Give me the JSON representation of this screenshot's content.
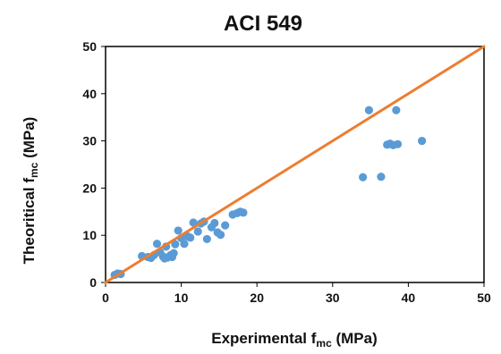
{
  "chart_data": {
    "type": "scatter",
    "title": "ACI 549",
    "xlabel": {
      "pre": "Experimental  f",
      "sub": "mc",
      "post": " (MPa)"
    },
    "ylabel": {
      "pre": "Theoritical  f",
      "sub": "mc",
      "post": " (MPa)"
    },
    "xlim": [
      0,
      50
    ],
    "ylim": [
      0,
      50
    ],
    "xticks": [
      "0",
      "10",
      "20",
      "30",
      "40",
      "50"
    ],
    "yticks": [
      "0",
      "10",
      "20",
      "30",
      "40",
      "50"
    ],
    "grid": false,
    "legend": "none",
    "colors": {
      "points": "#5b9bd5",
      "line": "#ed7d31"
    },
    "reference_line": {
      "x": [
        0,
        50
      ],
      "y": [
        0,
        50
      ]
    },
    "points": [
      [
        1.2,
        1.6
      ],
      [
        1.6,
        1.9
      ],
      [
        2.0,
        1.8
      ],
      [
        4.8,
        5.6
      ],
      [
        5.6,
        5.4
      ],
      [
        6.0,
        5.2
      ],
      [
        6.4,
        5.8
      ],
      [
        6.8,
        8.2
      ],
      [
        7.2,
        6.4
      ],
      [
        7.6,
        5.5
      ],
      [
        7.8,
        5.1
      ],
      [
        8.0,
        7.6
      ],
      [
        8.2,
        5.3
      ],
      [
        8.6,
        5.8
      ],
      [
        8.8,
        5.4
      ],
      [
        9.0,
        6.2
      ],
      [
        9.2,
        8.1
      ],
      [
        9.6,
        11.0
      ],
      [
        10.0,
        9.4
      ],
      [
        10.4,
        8.2
      ],
      [
        10.8,
        9.8
      ],
      [
        11.2,
        9.5
      ],
      [
        11.6,
        12.7
      ],
      [
        12.2,
        10.8
      ],
      [
        12.6,
        12.5
      ],
      [
        13.0,
        12.9
      ],
      [
        13.4,
        9.2
      ],
      [
        14.0,
        11.7
      ],
      [
        14.4,
        12.6
      ],
      [
        14.8,
        10.6
      ],
      [
        15.2,
        10.1
      ],
      [
        15.8,
        12.1
      ],
      [
        16.8,
        14.4
      ],
      [
        17.4,
        14.7
      ],
      [
        17.8,
        15.0
      ],
      [
        18.2,
        14.8
      ],
      [
        34.0,
        22.3
      ],
      [
        34.8,
        36.5
      ],
      [
        36.4,
        22.4
      ],
      [
        37.2,
        29.2
      ],
      [
        37.6,
        29.4
      ],
      [
        38.0,
        29.1
      ],
      [
        38.4,
        36.5
      ],
      [
        38.6,
        29.3
      ],
      [
        41.8,
        30.0
      ]
    ]
  }
}
